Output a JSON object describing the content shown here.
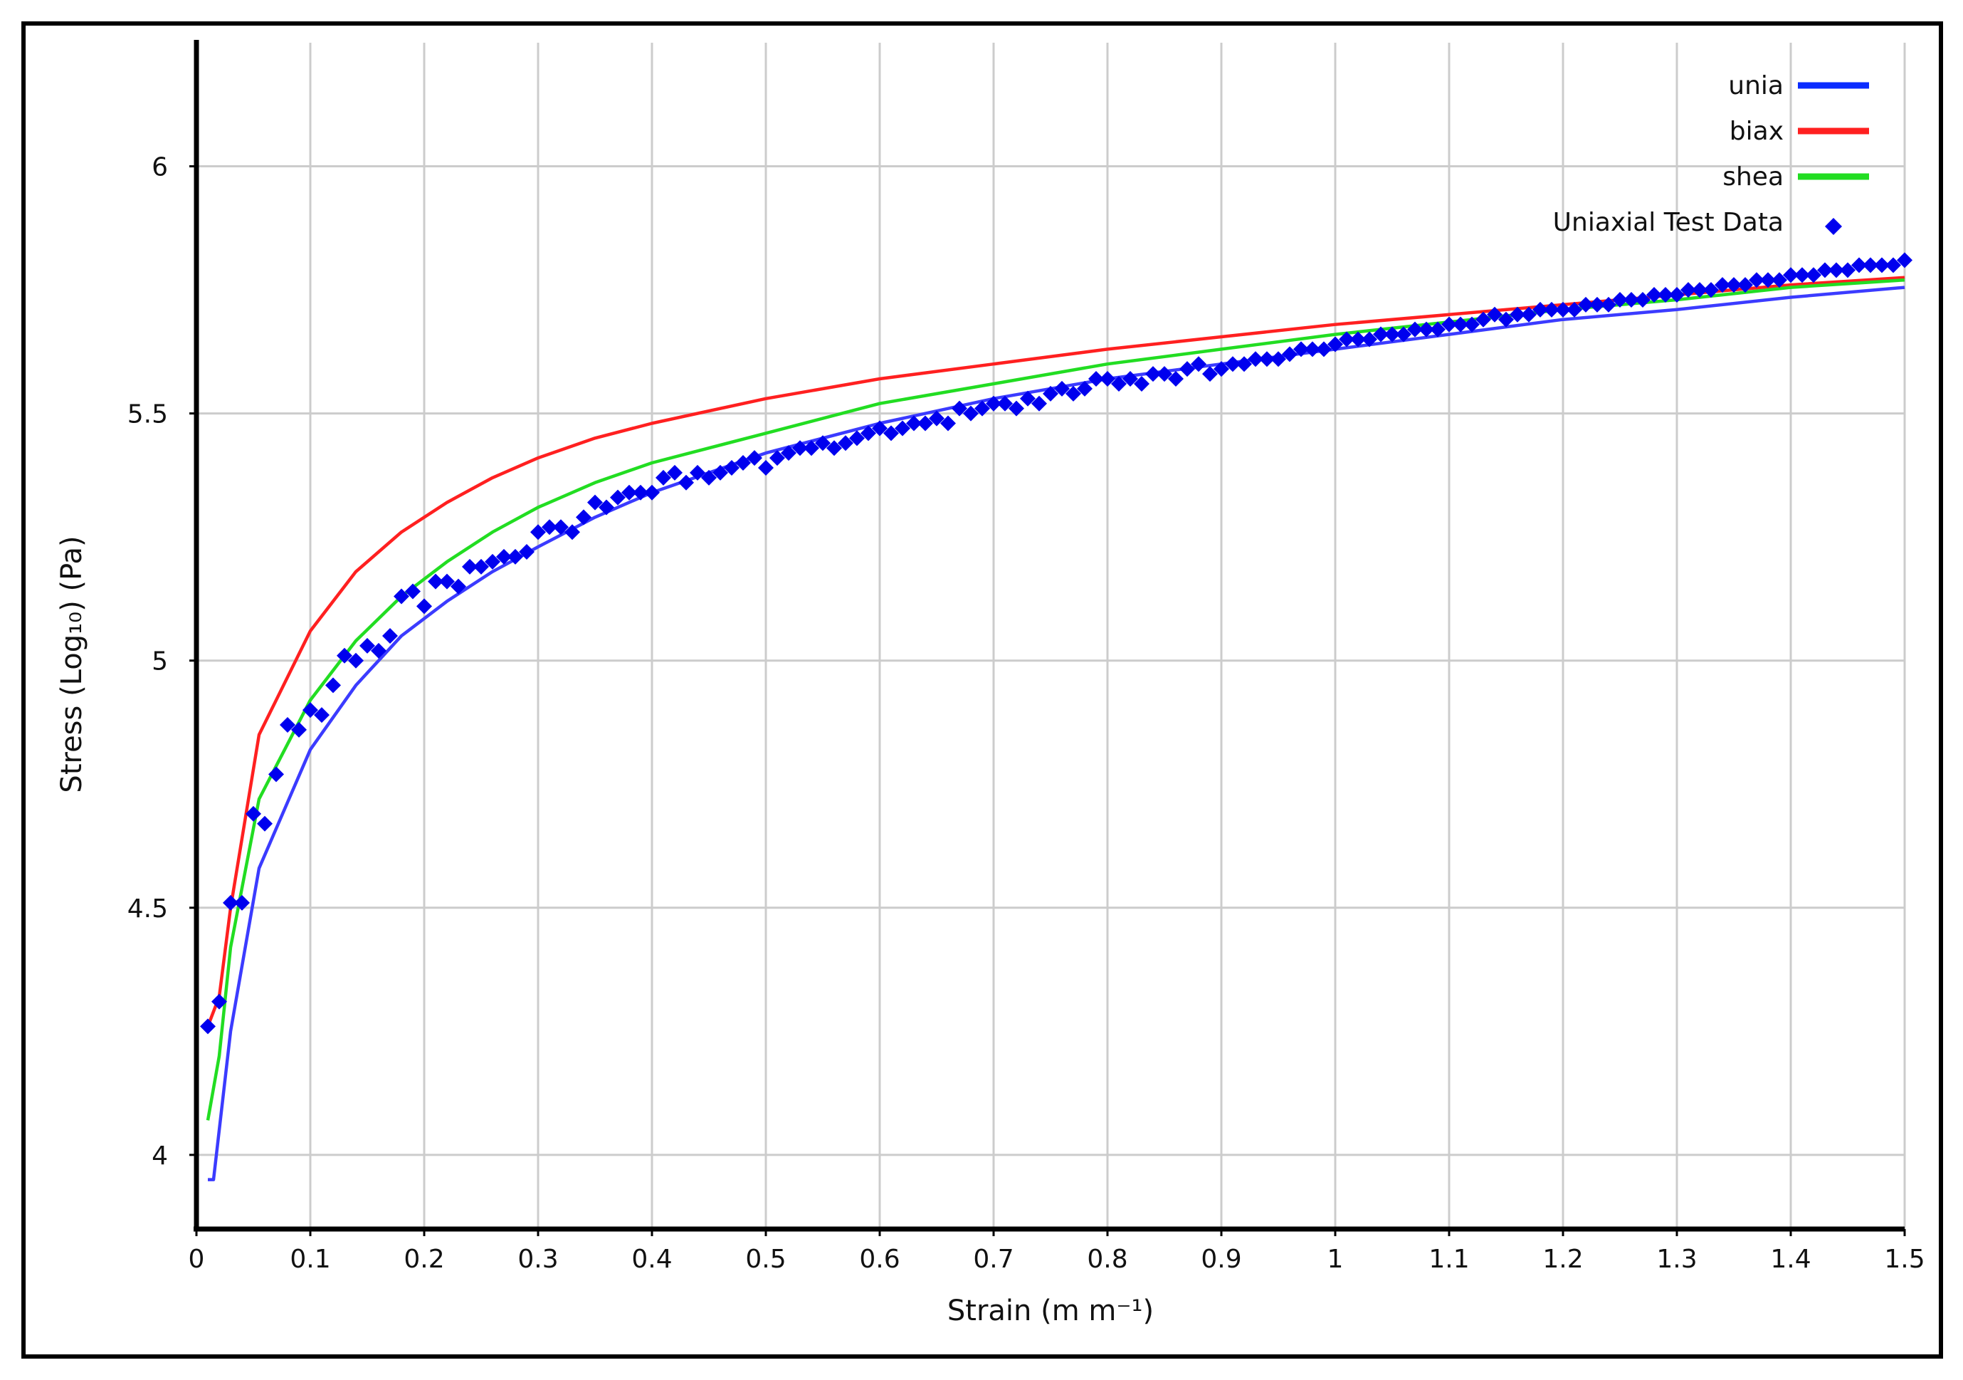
{
  "chart_data": {
    "type": "line",
    "title": "",
    "xlabel": "Strain (m m⁻¹)",
    "ylabel": "Stress  (Log₁₀)  (Pa)",
    "xlim": [
      0,
      1.5
    ],
    "ylim": [
      3.85,
      6.25
    ],
    "x_ticks": [
      0,
      0.1,
      0.2,
      0.3,
      0.4,
      0.5,
      0.6,
      0.7,
      0.8,
      0.9,
      1,
      1.1,
      1.2,
      1.3,
      1.4,
      1.5
    ],
    "x_tick_labels": [
      "0",
      "0.1",
      "0.2",
      "0.3",
      "0.4",
      "0.5",
      "0.6",
      "0.7",
      "0.8",
      "0.9",
      "1",
      "1.1",
      "1.2",
      "1.3",
      "1.4",
      "1.5"
    ],
    "y_ticks": [
      4,
      4.5,
      5,
      5.5,
      6
    ],
    "y_tick_labels": [
      "4",
      "4.5",
      "5",
      "5.5",
      "6"
    ],
    "grid": true,
    "legend_position": "top-right",
    "series": [
      {
        "name": "unia",
        "kind": "line",
        "color": "#3b3bff",
        "x": [
          0.01,
          0.015,
          0.03,
          0.055,
          0.1,
          0.14,
          0.18,
          0.22,
          0.26,
          0.3,
          0.35,
          0.4,
          0.5,
          0.6,
          0.7,
          0.8,
          0.9,
          1.0,
          1.1,
          1.2,
          1.3,
          1.4,
          1.5
        ],
        "y": [
          3.95,
          3.95,
          4.25,
          4.58,
          4.82,
          4.95,
          5.05,
          5.12,
          5.18,
          5.23,
          5.29,
          5.34,
          5.42,
          5.48,
          5.53,
          5.57,
          5.6,
          5.63,
          5.66,
          5.69,
          5.71,
          5.735,
          5.755
        ]
      },
      {
        "name": "biax",
        "kind": "line",
        "color": "#ff2020",
        "x": [
          0.01,
          0.02,
          0.03,
          0.055,
          0.1,
          0.14,
          0.18,
          0.22,
          0.26,
          0.3,
          0.35,
          0.4,
          0.5,
          0.6,
          0.7,
          0.8,
          0.9,
          1.0,
          1.1,
          1.2,
          1.3,
          1.4,
          1.5
        ],
        "y": [
          4.26,
          4.32,
          4.5,
          4.85,
          5.06,
          5.18,
          5.26,
          5.32,
          5.37,
          5.41,
          5.45,
          5.48,
          5.53,
          5.57,
          5.6,
          5.63,
          5.655,
          5.68,
          5.7,
          5.72,
          5.74,
          5.76,
          5.775
        ]
      },
      {
        "name": "shea",
        "kind": "line",
        "color": "#22dd22",
        "x": [
          0.01,
          0.02,
          0.03,
          0.055,
          0.1,
          0.14,
          0.18,
          0.22,
          0.26,
          0.3,
          0.35,
          0.4,
          0.5,
          0.6,
          0.7,
          0.8,
          0.9,
          1.0,
          1.1,
          1.2,
          1.3,
          1.4,
          1.5
        ],
        "y": [
          4.07,
          4.2,
          4.42,
          4.72,
          4.92,
          5.04,
          5.13,
          5.2,
          5.26,
          5.31,
          5.36,
          5.4,
          5.46,
          5.52,
          5.56,
          5.6,
          5.63,
          5.66,
          5.685,
          5.71,
          5.73,
          5.755,
          5.77
        ]
      },
      {
        "name": "Uniaxial Test Data",
        "kind": "scatter",
        "marker": "diamond",
        "color": "#0000ee",
        "x": [
          0.01,
          0.02,
          0.03,
          0.04,
          0.05,
          0.06,
          0.07,
          0.08,
          0.09,
          0.1,
          0.11,
          0.12,
          0.13,
          0.14,
          0.15,
          0.16,
          0.17,
          0.18,
          0.19,
          0.2,
          0.21,
          0.22,
          0.23,
          0.24,
          0.25,
          0.26,
          0.27,
          0.28,
          0.29,
          0.3,
          0.31,
          0.32,
          0.33,
          0.34,
          0.35,
          0.36,
          0.37,
          0.38,
          0.39,
          0.4,
          0.41,
          0.42,
          0.43,
          0.44,
          0.45,
          0.46,
          0.47,
          0.48,
          0.49,
          0.5,
          0.51,
          0.52,
          0.53,
          0.54,
          0.55,
          0.56,
          0.57,
          0.58,
          0.59,
          0.6,
          0.61,
          0.62,
          0.63,
          0.64,
          0.65,
          0.66,
          0.67,
          0.68,
          0.69,
          0.7,
          0.71,
          0.72,
          0.73,
          0.74,
          0.75,
          0.76,
          0.77,
          0.78,
          0.79,
          0.8,
          0.81,
          0.82,
          0.83,
          0.84,
          0.85,
          0.86,
          0.87,
          0.88,
          0.89,
          0.9,
          0.91,
          0.92,
          0.93,
          0.94,
          0.95,
          0.96,
          0.97,
          0.98,
          0.99,
          1.0,
          1.01,
          1.02,
          1.03,
          1.04,
          1.05,
          1.06,
          1.07,
          1.08,
          1.09,
          1.1,
          1.11,
          1.12,
          1.13,
          1.14,
          1.15,
          1.16,
          1.17,
          1.18,
          1.19,
          1.2,
          1.21,
          1.22,
          1.23,
          1.24,
          1.25,
          1.26,
          1.27,
          1.28,
          1.29,
          1.3,
          1.31,
          1.32,
          1.33,
          1.34,
          1.35,
          1.36,
          1.37,
          1.38,
          1.39,
          1.4,
          1.41,
          1.42,
          1.43,
          1.44,
          1.45,
          1.46,
          1.47,
          1.48,
          1.49,
          1.5
        ],
        "y": [
          4.26,
          4.31,
          4.51,
          4.51,
          4.69,
          4.67,
          4.77,
          4.87,
          4.86,
          4.9,
          4.89,
          4.95,
          5.01,
          5.0,
          5.03,
          5.02,
          5.05,
          5.13,
          5.14,
          5.11,
          5.16,
          5.16,
          5.15,
          5.19,
          5.19,
          5.2,
          5.21,
          5.21,
          5.22,
          5.26,
          5.27,
          5.27,
          5.26,
          5.29,
          5.32,
          5.31,
          5.33,
          5.34,
          5.34,
          5.34,
          5.37,
          5.38,
          5.36,
          5.38,
          5.37,
          5.38,
          5.39,
          5.4,
          5.41,
          5.39,
          5.41,
          5.42,
          5.43,
          5.43,
          5.44,
          5.43,
          5.44,
          5.45,
          5.46,
          5.47,
          5.46,
          5.47,
          5.48,
          5.48,
          5.49,
          5.48,
          5.51,
          5.5,
          5.51,
          5.52,
          5.52,
          5.51,
          5.53,
          5.52,
          5.54,
          5.55,
          5.54,
          5.55,
          5.57,
          5.57,
          5.56,
          5.57,
          5.56,
          5.58,
          5.58,
          5.57,
          5.59,
          5.6,
          5.58,
          5.59,
          5.6,
          5.6,
          5.61,
          5.61,
          5.61,
          5.62,
          5.63,
          5.63,
          5.63,
          5.64,
          5.65,
          5.65,
          5.65,
          5.66,
          5.66,
          5.66,
          5.67,
          5.67,
          5.67,
          5.68,
          5.68,
          5.68,
          5.69,
          5.7,
          5.69,
          5.7,
          5.7,
          5.71,
          5.71,
          5.71,
          5.71,
          5.72,
          5.72,
          5.72,
          5.73,
          5.73,
          5.73,
          5.74,
          5.74,
          5.74,
          5.75,
          5.75,
          5.75,
          5.76,
          5.76,
          5.76,
          5.77,
          5.77,
          5.77,
          5.78,
          5.78,
          5.78,
          5.79,
          5.79,
          5.79,
          5.8,
          5.8,
          5.8,
          5.8,
          5.81
        ]
      }
    ],
    "legend": [
      {
        "label": "unia",
        "symbol": "line",
        "color": "#0b2cff"
      },
      {
        "label": "biax",
        "symbol": "line",
        "color": "#ff2020"
      },
      {
        "label": "shea",
        "symbol": "line",
        "color": "#22dd22"
      },
      {
        "label": "Uniaxial Test Data",
        "symbol": "diamond",
        "color": "#0000ee"
      }
    ]
  }
}
